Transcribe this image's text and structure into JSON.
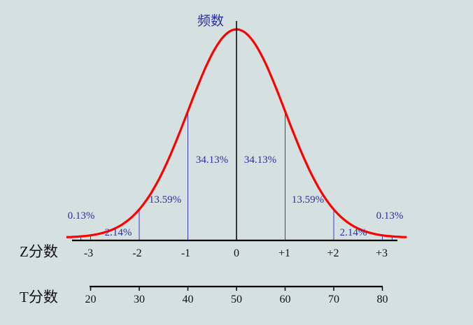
{
  "chart_data": {
    "type": "area",
    "ylabel": "频数",
    "curve_color": "#ff0000",
    "divider_color": "#3a3ad0",
    "x": [
      -3,
      -2,
      -1,
      0,
      1,
      2,
      3
    ],
    "regions": [
      {
        "from": -3.2,
        "to": -3,
        "percent": "0.13%"
      },
      {
        "from": -3,
        "to": -2,
        "percent": "2.14%"
      },
      {
        "from": -2,
        "to": -1,
        "percent": "13.59%"
      },
      {
        "from": -1,
        "to": 0,
        "percent": "34.13%"
      },
      {
        "from": 0,
        "to": 1,
        "percent": "34.13%"
      },
      {
        "from": 1,
        "to": 2,
        "percent": "13.59%"
      },
      {
        "from": 2,
        "to": 3,
        "percent": "2.14%"
      },
      {
        "from": 3,
        "to": 3.2,
        "percent": "0.13%"
      }
    ],
    "z_axis": {
      "name": "Z分数",
      "ticks": [
        "-3",
        "-2",
        "-1",
        "0",
        "+1",
        "+2",
        "+3"
      ]
    },
    "t_axis": {
      "name": "T分数",
      "ticks": [
        "20",
        "30",
        "40",
        "50",
        "60",
        "70",
        "80"
      ]
    }
  }
}
